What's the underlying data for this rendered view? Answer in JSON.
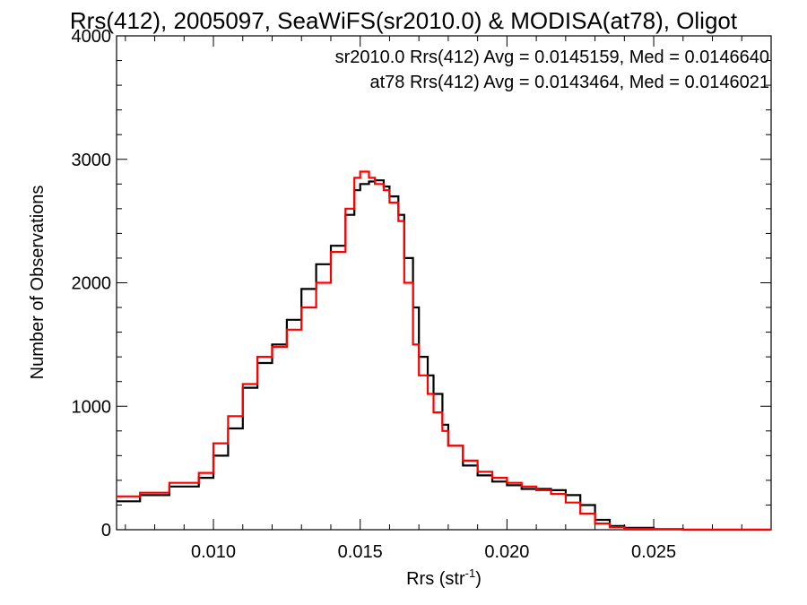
{
  "chart_data": {
    "type": "line",
    "title": "Rrs(412), 2005097, SeaWiFS(sr2010.0) & MODISA(at78), Oligot",
    "xlabel": "Rrs (str",
    "xlabel_sup": "-1",
    "xlabel_close": ")",
    "ylabel": "Number of Observations",
    "xlim": [
      0.0067,
      0.029
    ],
    "ylim": [
      0,
      4000
    ],
    "x_ticks": [
      0.01,
      0.015,
      0.02,
      0.025
    ],
    "x_tick_labels": [
      "0.010",
      "0.015",
      "0.020",
      "0.025"
    ],
    "y_ticks": [
      0,
      1000,
      2000,
      3000,
      4000
    ],
    "y_tick_labels": [
      "0",
      "1000",
      "2000",
      "3000",
      "4000"
    ],
    "grid": false,
    "legend_position": "top-right",
    "series": [
      {
        "name": "sr2010.0",
        "annotation": "sr2010.0 Rrs(412) Avg = 0.0145159, Med = 0.0146640",
        "color": "#000000",
        "x": [
          0.0067,
          0.0075,
          0.0085,
          0.0095,
          0.01,
          0.0105,
          0.011,
          0.0115,
          0.012,
          0.0125,
          0.013,
          0.0135,
          0.014,
          0.0145,
          0.0148,
          0.015,
          0.0153,
          0.0155,
          0.0158,
          0.016,
          0.0163,
          0.0165,
          0.0168,
          0.017,
          0.0173,
          0.0175,
          0.0178,
          0.018,
          0.0185,
          0.019,
          0.0195,
          0.02,
          0.0205,
          0.021,
          0.0215,
          0.022,
          0.0225,
          0.023,
          0.0235,
          0.024,
          0.025,
          0.026,
          0.027,
          0.028,
          0.029
        ],
        "y": [
          230,
          280,
          350,
          420,
          600,
          820,
          1150,
          1350,
          1500,
          1700,
          1950,
          2150,
          2300,
          2550,
          2750,
          2800,
          2820,
          2830,
          2780,
          2700,
          2550,
          2200,
          1800,
          1400,
          1250,
          1100,
          850,
          680,
          520,
          440,
          390,
          360,
          330,
          330,
          320,
          280,
          200,
          80,
          30,
          15,
          5,
          0,
          0,
          0,
          0
        ]
      },
      {
        "name": "at78",
        "annotation": "at78 Rrs(412) Avg = 0.0143464, Med = 0.0146021",
        "color": "#ff0000",
        "x": [
          0.0067,
          0.0075,
          0.0085,
          0.0095,
          0.01,
          0.0105,
          0.011,
          0.0115,
          0.012,
          0.0125,
          0.013,
          0.0135,
          0.014,
          0.0145,
          0.0148,
          0.015,
          0.0153,
          0.0155,
          0.0158,
          0.016,
          0.0163,
          0.0165,
          0.0168,
          0.017,
          0.0173,
          0.0175,
          0.0178,
          0.018,
          0.0185,
          0.019,
          0.0195,
          0.02,
          0.0205,
          0.021,
          0.0215,
          0.022,
          0.0225,
          0.023,
          0.0235,
          0.024,
          0.025,
          0.026,
          0.027,
          0.028,
          0.029
        ],
        "y": [
          270,
          300,
          380,
          460,
          700,
          920,
          1180,
          1400,
          1480,
          1620,
          1800,
          2000,
          2250,
          2600,
          2850,
          2900,
          2850,
          2800,
          2750,
          2650,
          2500,
          2000,
          1500,
          1250,
          1100,
          950,
          800,
          680,
          560,
          470,
          420,
          380,
          350,
          320,
          290,
          220,
          130,
          50,
          20,
          8,
          2,
          0,
          0,
          0,
          0
        ]
      }
    ]
  }
}
